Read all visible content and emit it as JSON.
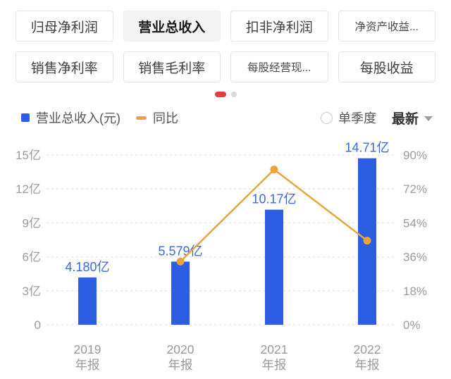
{
  "tabs": {
    "row1": [
      {
        "label": "归母净利润",
        "selected": false
      },
      {
        "label": "营业总收入",
        "selected": true
      },
      {
        "label": "扣非净利润",
        "selected": false
      },
      {
        "label": "净资产收益...",
        "selected": false
      }
    ],
    "row2": [
      {
        "label": "销售净利率",
        "selected": false
      },
      {
        "label": "销售毛利率",
        "selected": false
      },
      {
        "label": "每股经营现...",
        "selected": false
      },
      {
        "label": "每股收益",
        "selected": false
      }
    ]
  },
  "pagination": {
    "active_color": "#e23c3c",
    "inactive_color": "#d9d9d9"
  },
  "legend": {
    "series1_label": "营业总收入(元)",
    "series1_color": "#2d5de2",
    "series2_label": "同比",
    "series2_color": "#e9a43e"
  },
  "controls": {
    "radio_label": "单季度",
    "dropdown_label": "最新"
  },
  "chart_data": {
    "type": "bar+line dual-axis",
    "categories": [
      [
        "2019",
        "年报"
      ],
      [
        "2020",
        "年报"
      ],
      [
        "2021",
        "年报"
      ],
      [
        "2022",
        "年报"
      ]
    ],
    "series": [
      {
        "name": "营业总收入(元)",
        "type": "bar",
        "unit": "亿",
        "values": [
          4.18,
          5.579,
          10.17,
          14.71
        ],
        "labels": [
          "4.180亿",
          "5.579亿",
          "10.17亿",
          "14.71亿"
        ],
        "color": "#2d5de2",
        "label_color": "#3a6bdc",
        "axis": "left"
      },
      {
        "name": "同比",
        "type": "line",
        "unit": "%",
        "values": [
          null,
          33.5,
          82.3,
          44.6
        ],
        "color": "#e9a43e",
        "axis": "right"
      }
    ],
    "left_axis": {
      "ticks": [
        "0",
        "3亿",
        "6亿",
        "9亿",
        "12亿",
        "15亿"
      ],
      "min": 0,
      "max": 15,
      "unit": "亿"
    },
    "right_axis": {
      "ticks": [
        "0%",
        "18%",
        "36%",
        "54%",
        "72%",
        "90%"
      ],
      "min": 0,
      "max": 90,
      "unit": "%"
    },
    "grid": true,
    "legend_position": "top-left"
  }
}
